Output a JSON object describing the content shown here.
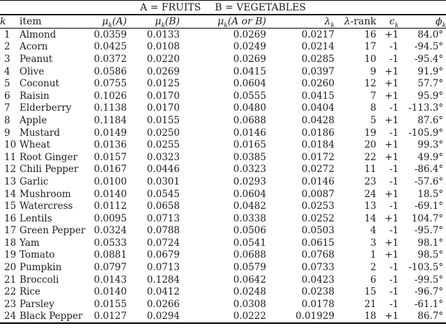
{
  "title": {
    "group_a": "A = FRUITS",
    "group_b": "B = VEGETABLES"
  },
  "header": {
    "k": "k",
    "item": "item",
    "mu": "μ",
    "sub_k": "k",
    "paren_a": "(A)",
    "paren_b": "(B)",
    "paren_a_or_b": "(A or B)",
    "lambda": "λ",
    "rank_suffix": "-rank",
    "epsilon": "ϵ",
    "phi": "ϕ"
  },
  "colors": {
    "text": "#1c1c1c",
    "rule": "#000000",
    "background": "#ffffff"
  },
  "table": {
    "col_keys": [
      "k",
      "item",
      "mu-a",
      "mu-b",
      "mu-a-or-b",
      "lambda",
      "lambda-rank",
      "epsilon",
      "phi"
    ],
    "rows": [
      [
        "1",
        "Almond",
        "0.0359",
        "0.0133",
        "0.0269",
        "0.0217",
        "16",
        "+1",
        "84.0°"
      ],
      [
        "2",
        "Acorn",
        "0.0425",
        "0.0108",
        "0.0249",
        "0.0214",
        "17",
        "-1",
        "-94.5°"
      ],
      [
        "3",
        "Peanut",
        "0.0372",
        "0.0220",
        "0.0269",
        "0.0285",
        "10",
        "-1",
        "-95.4°"
      ],
      [
        "4",
        "Olive",
        "0.0586",
        "0.0269",
        "0.0415",
        "0.0397",
        "9",
        "+1",
        "91.9°"
      ],
      [
        "5",
        "Coconut",
        "0.0755",
        "0.0125",
        "0.0604",
        "0.0260",
        "12",
        "+1",
        "57.7°"
      ],
      [
        "6",
        "Raisin",
        "0.1026",
        "0.0170",
        "0.0555",
        "0.0415",
        "7",
        "+1",
        "95.9°"
      ],
      [
        "7",
        "Elderberry",
        "0.1138",
        "0.0170",
        "0.0480",
        "0.0404",
        "8",
        "-1",
        "-113.3°"
      ],
      [
        "8",
        "Apple",
        "0.1184",
        "0.0155",
        "0.0688",
        "0.0428",
        "5",
        "+1",
        "87.6°"
      ],
      [
        "9",
        "Mustard",
        "0.0149",
        "0.0250",
        "0.0146",
        "0.0186",
        "19",
        "-1",
        "-105.9°"
      ],
      [
        "10",
        "Wheat",
        "0.0136",
        "0.0255",
        "0.0165",
        "0.0184",
        "20",
        "+1",
        "99.3°"
      ],
      [
        "11",
        "Root Ginger",
        "0.0157",
        "0.0323",
        "0.0385",
        "0.0172",
        "22",
        "+1",
        "49.9°"
      ],
      [
        "12",
        "Chili Pepper",
        "0.0167",
        "0.0446",
        "0.0323",
        "0.0272",
        "11",
        "-1",
        "-86.4°"
      ],
      [
        "13",
        "Garlic",
        "0.0100",
        "0.0301",
        "0.0293",
        "0.0146",
        "23",
        "-1",
        "-57.6°"
      ],
      [
        "14",
        "Mushroom",
        "0.0140",
        "0.0545",
        "0.0604",
        "0.0087",
        "24",
        "+1",
        "18.5°"
      ],
      [
        "15",
        "Watercress",
        "0.0112",
        "0.0658",
        "0.0482",
        "0.0253",
        "13",
        "-1",
        "-69.1°"
      ],
      [
        "16",
        "Lentils",
        "0.0095",
        "0.0713",
        "0.0338",
        "0.0252",
        "14",
        "+1",
        "104.7°"
      ],
      [
        "17",
        "Green Pepper",
        "0.0324",
        "0.0788",
        "0.0506",
        "0.0503",
        "4",
        "-1",
        "-95.7°"
      ],
      [
        "18",
        "Yam",
        "0.0533",
        "0.0724",
        "0.0541",
        "0.0615",
        "3",
        "+1",
        "98.1°"
      ],
      [
        "19",
        "Tomato",
        "0.0881",
        "0.0679",
        "0.0688",
        "0.0768",
        "1",
        "+1",
        "98.5°"
      ],
      [
        "20",
        "Pumpkin",
        "0.0797",
        "0.0713",
        "0.0579",
        "0.0733",
        "2",
        "-1",
        "-103.5°"
      ],
      [
        "21",
        "Broccoli",
        "0.0143",
        "0.1284",
        "0.0642",
        "0.0423",
        "6",
        "-1",
        "-99.5°"
      ],
      [
        "22",
        "Rice",
        "0.0140",
        "0.0412",
        "0.0248",
        "0.0238",
        "15",
        "-1",
        "-96.7°"
      ],
      [
        "23",
        "Parsley",
        "0.0155",
        "0.0266",
        "0.0308",
        "0.0178",
        "21",
        "-1",
        "-61.1°"
      ],
      [
        "24",
        "Black Pepper",
        "0.0127",
        "0.0294",
        "0.0222",
        "0.01929",
        "18",
        "+1",
        "86.7°"
      ]
    ]
  }
}
